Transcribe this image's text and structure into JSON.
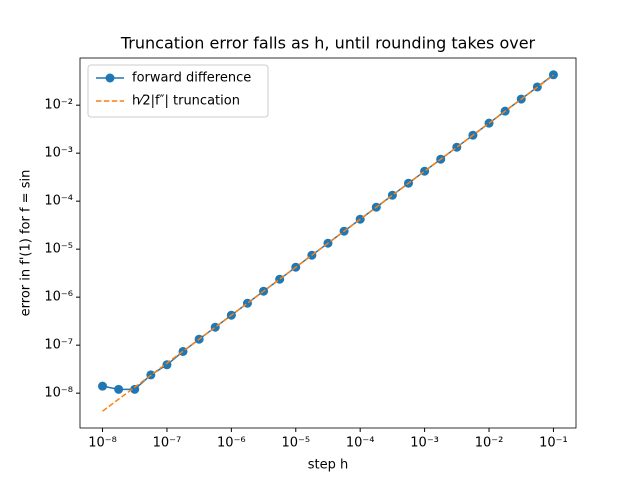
{
  "chart_data": {
    "type": "line",
    "title": "Truncation error falls as h, until rounding takes over",
    "x_label": "step h",
    "y_label": "error in f'(1) for f = sin",
    "log_x": true,
    "log_y": true,
    "legend": "upper left",
    "x": [
      1e-08,
      1.778e-08,
      3.162e-08,
      5.623e-08,
      1e-07,
      1.778e-07,
      3.162e-07,
      5.623e-07,
      1e-06,
      1.778e-06,
      3.162e-06,
      5.623e-06,
      1e-05,
      1.778e-05,
      3.162e-05,
      5.623e-05,
      0.0001,
      0.0001778,
      0.0003162,
      0.0005623,
      0.001,
      0.001778,
      0.003162,
      0.005623,
      0.01,
      0.01778,
      0.03162,
      0.05623,
      0.1
    ],
    "series": [
      {
        "name": "forward difference",
        "color": "#1f77b4",
        "style": "line-marker",
        "values": [
          1.4e-08,
          1.2e-08,
          1.2e-08,
          2.4e-08,
          3.9e-08,
          7.4e-08,
          1.3305e-07,
          2.366e-07,
          4.207e-07,
          7.482e-07,
          1.3305e-06,
          2.366e-06,
          4.207e-06,
          7.482e-06,
          1.3305e-05,
          2.366e-05,
          4.207e-05,
          7.482e-05,
          0.00013305,
          0.0002366,
          0.0004208,
          0.0007484,
          0.0013308,
          0.002367,
          0.004216,
          0.00751,
          0.0134,
          0.02394,
          0.04297
        ]
      },
      {
        "name": "h⁄2|f″| truncation",
        "color": "#ff7f0e",
        "style": "dashed",
        "values": [
          4.207e-09,
          7.482e-09,
          1.3305e-08,
          2.366e-08,
          4.207e-08,
          7.482e-08,
          1.3305e-07,
          2.366e-07,
          4.207e-07,
          7.482e-07,
          1.3305e-06,
          2.366e-06,
          4.207e-06,
          7.482e-06,
          1.3305e-05,
          2.366e-05,
          4.207e-05,
          7.482e-05,
          0.00013305,
          0.0002366,
          0.0004207,
          0.0007482,
          0.0013305,
          0.002366,
          0.004207,
          0.007482,
          0.013305,
          0.02366,
          0.04207
        ]
      }
    ],
    "xlim": [
      4.47e-09,
      0.224
    ],
    "ylim": [
      1.88e-09,
      0.0961
    ],
    "xticks": [
      {
        "value": 1e-08,
        "label": "10⁻⁸"
      },
      {
        "value": 1e-07,
        "label": "10⁻⁷"
      },
      {
        "value": 1e-06,
        "label": "10⁻⁶"
      },
      {
        "value": 1e-05,
        "label": "10⁻⁵"
      },
      {
        "value": 0.0001,
        "label": "10⁻⁴"
      },
      {
        "value": 0.001,
        "label": "10⁻³"
      },
      {
        "value": 0.01,
        "label": "10⁻²"
      },
      {
        "value": 0.1,
        "label": "10⁻¹"
      }
    ],
    "yticks": [
      {
        "value": 1e-08,
        "label": "10⁻⁸"
      },
      {
        "value": 1e-07,
        "label": "10⁻⁷"
      },
      {
        "value": 1e-06,
        "label": "10⁻⁶"
      },
      {
        "value": 1e-05,
        "label": "10⁻⁵"
      },
      {
        "value": 0.0001,
        "label": "10⁻⁴"
      },
      {
        "value": 0.001,
        "label": "10⁻³"
      },
      {
        "value": 0.01,
        "label": "10⁻²"
      }
    ],
    "grid": false
  }
}
